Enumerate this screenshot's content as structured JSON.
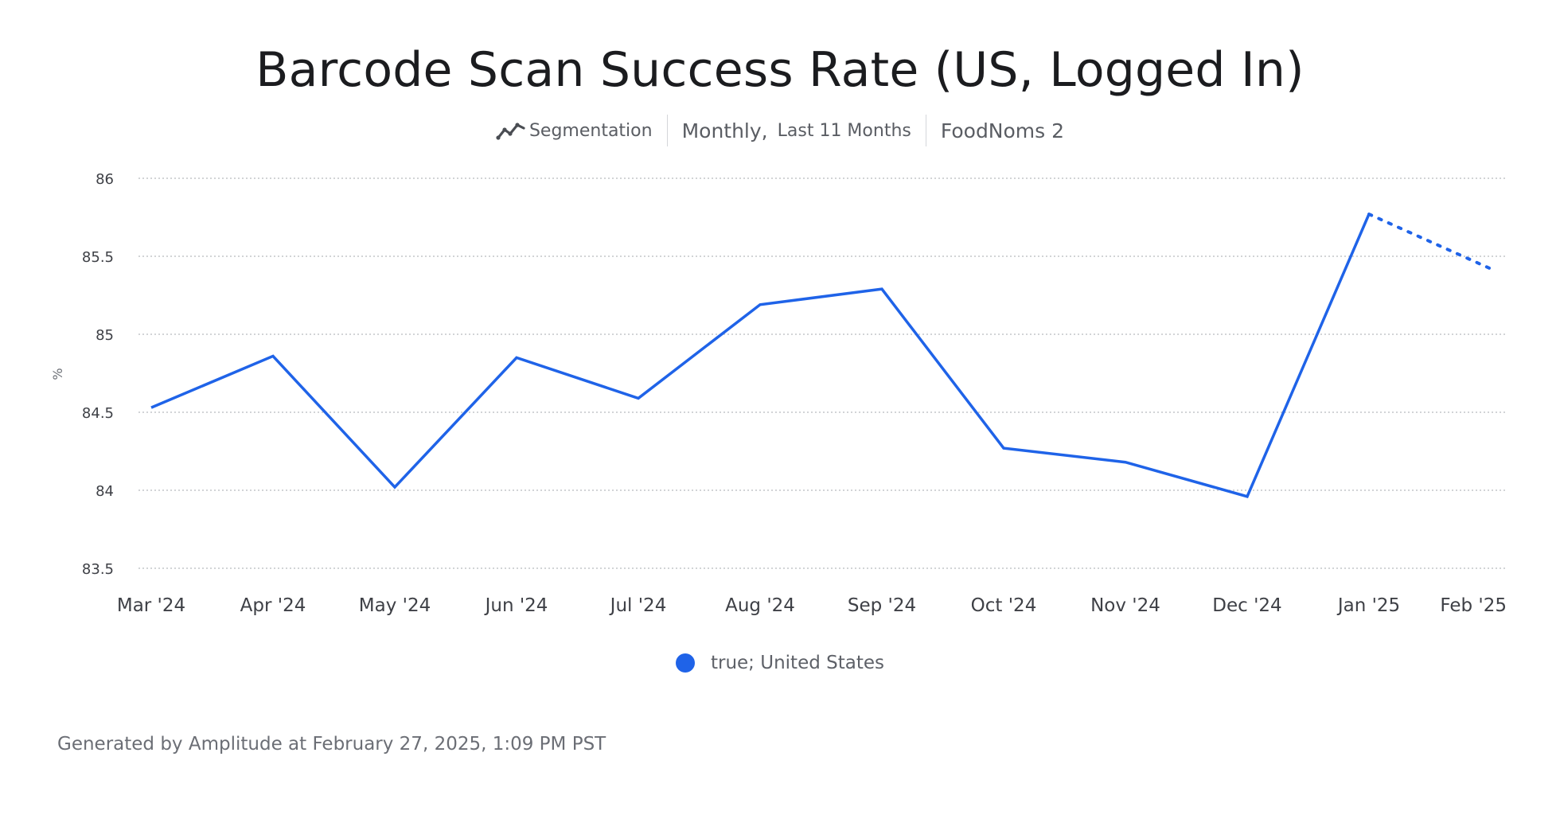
{
  "header": {
    "title": "Barcode Scan Success Rate (US, Logged In)",
    "chart_type_label": "Segmentation",
    "chart_type_icon": "line-chart-icon",
    "interval": "Monthly,",
    "range": "Last 11 Months",
    "project": "FoodNoms 2"
  },
  "legend": {
    "label": "true; United States"
  },
  "footer": {
    "text": "Generated by Amplitude at February 27, 2025, 1:09 PM PST"
  },
  "colors": {
    "series": "#1f63e8",
    "grid": "#b8babe",
    "tick_text": "#3e4046",
    "ylabel_text": "#6b6e75"
  },
  "chart_data": {
    "type": "line",
    "title": "Barcode Scan Success Rate (US, Logged In)",
    "ylabel": "%",
    "xlabel": "",
    "ylim": [
      83.5,
      86
    ],
    "yticks": [
      "86",
      "85.5",
      "85",
      "84.5",
      "84",
      "83.5"
    ],
    "ytick_values": [
      86,
      85.5,
      85,
      84.5,
      84,
      83.5
    ],
    "grid": true,
    "legend_position": "bottom-center",
    "categories": [
      "Mar '24",
      "Apr '24",
      "May '24",
      "Jun '24",
      "Jul '24",
      "Aug '24",
      "Sep '24",
      "Oct '24",
      "Nov '24",
      "Dec '24",
      "Jan '25",
      "Feb '25"
    ],
    "series": [
      {
        "name": "true; United States",
        "values": [
          84.53,
          84.86,
          84.02,
          84.85,
          84.59,
          85.19,
          85.29,
          84.27,
          84.18,
          83.96,
          85.77,
          85.42
        ],
        "incomplete_last_point": true
      }
    ]
  }
}
